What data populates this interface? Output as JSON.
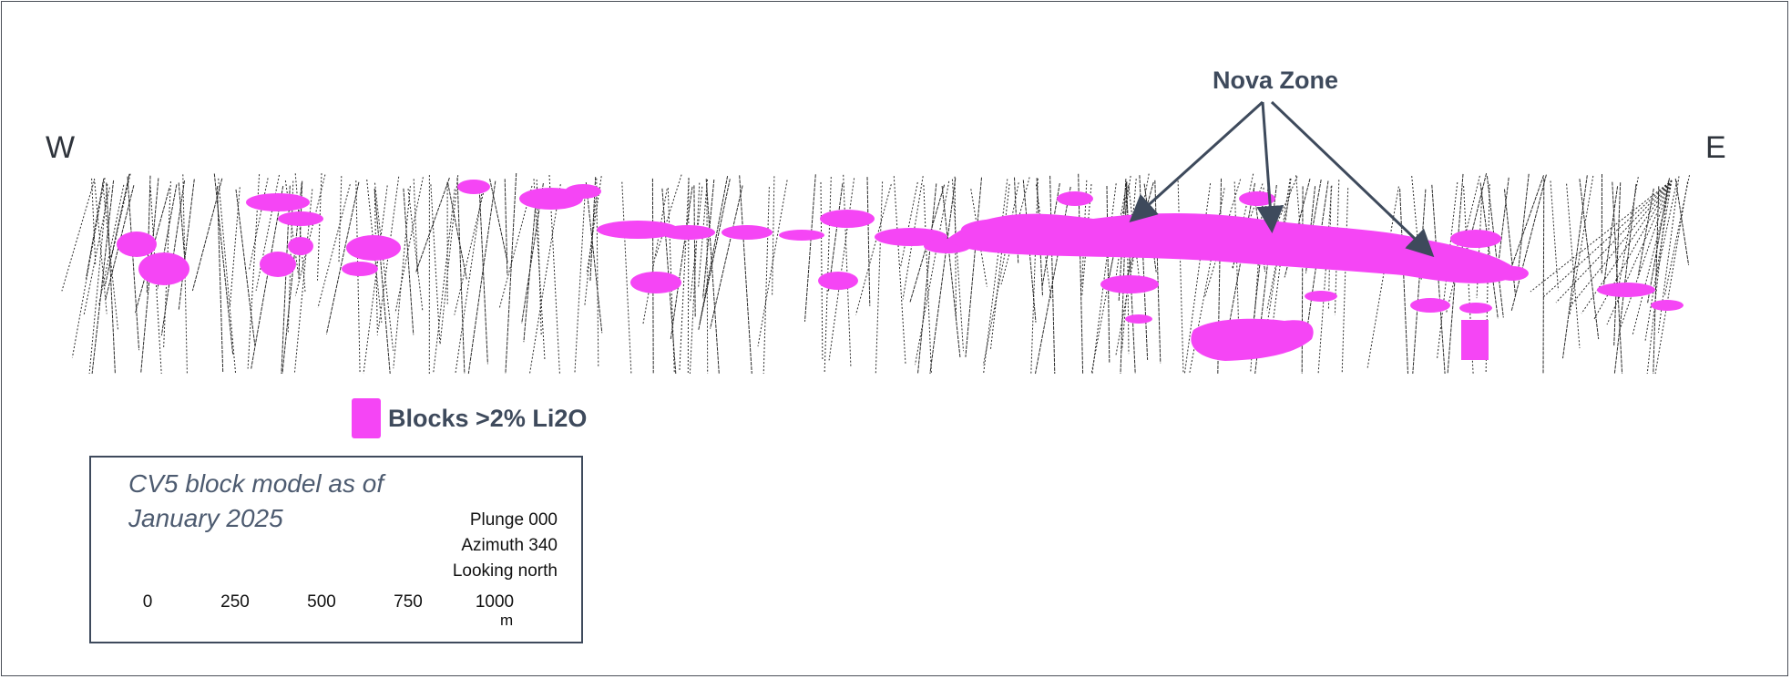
{
  "compass": {
    "west": "W",
    "east": "E"
  },
  "callout": {
    "label": "Nova Zone"
  },
  "legend": {
    "label": "Blocks >2% Li2O",
    "color": "#f545f5"
  },
  "info_box": {
    "title_line1": "CV5 block model as of",
    "title_line2": "January 2025",
    "plunge": "Plunge 000",
    "azimuth": "Azimuth 340",
    "looking": "Looking north"
  },
  "scale_bar": {
    "ticks": [
      "0",
      "250",
      "500",
      "750",
      "1000"
    ],
    "unit": "m"
  },
  "colors": {
    "block_fill": "#f545f5",
    "drillhole": "#2a2a2a",
    "text_dark": "#3e4a5c"
  }
}
